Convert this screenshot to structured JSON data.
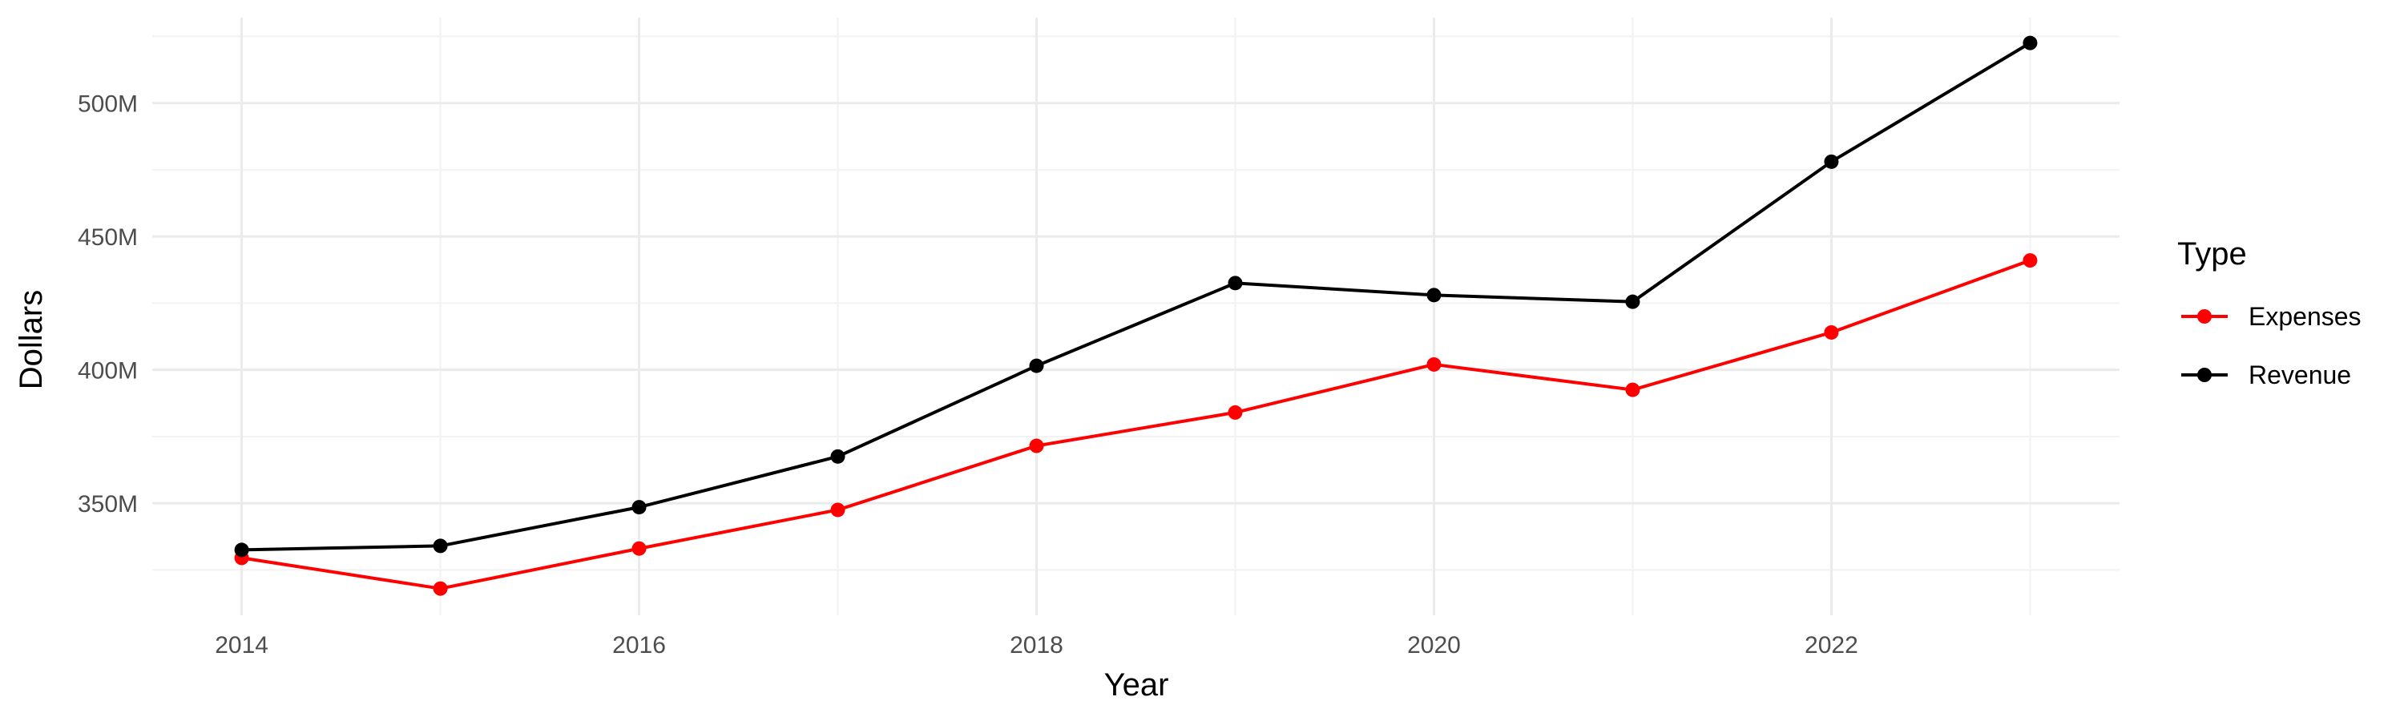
{
  "chart_data": {
    "type": "line",
    "xlabel": "Year",
    "ylabel": "Dollars",
    "x": [
      2014,
      2015,
      2016,
      2017,
      2018,
      2019,
      2020,
      2021,
      2022,
      2023
    ],
    "x_ticks": [
      2014,
      2016,
      2018,
      2020,
      2022
    ],
    "x_tick_labels": [
      "2014",
      "2016",
      "2018",
      "2020",
      "2022"
    ],
    "y_ticks": [
      350000000,
      400000000,
      450000000,
      500000000
    ],
    "y_tick_labels": [
      "350M",
      "400M",
      "450M",
      "500M"
    ],
    "xlim": [
      2013.55,
      2023.45
    ],
    "ylim": [
      308000000,
      532000000
    ],
    "grid": true,
    "legend": {
      "title": "Type",
      "position": "right",
      "entries": [
        "Expenses",
        "Revenue"
      ]
    },
    "series": [
      {
        "name": "Expenses",
        "color": "#ff0000",
        "values": [
          329500000,
          318000000,
          333000000,
          347500000,
          371500000,
          384000000,
          402000000,
          392500000,
          414000000,
          441000000
        ]
      },
      {
        "name": "Revenue",
        "color": "#000000",
        "values": [
          332500000,
          334000000,
          348500000,
          367500000,
          401500000,
          432500000,
          428000000,
          425500000,
          478000000,
          522500000
        ]
      }
    ]
  }
}
